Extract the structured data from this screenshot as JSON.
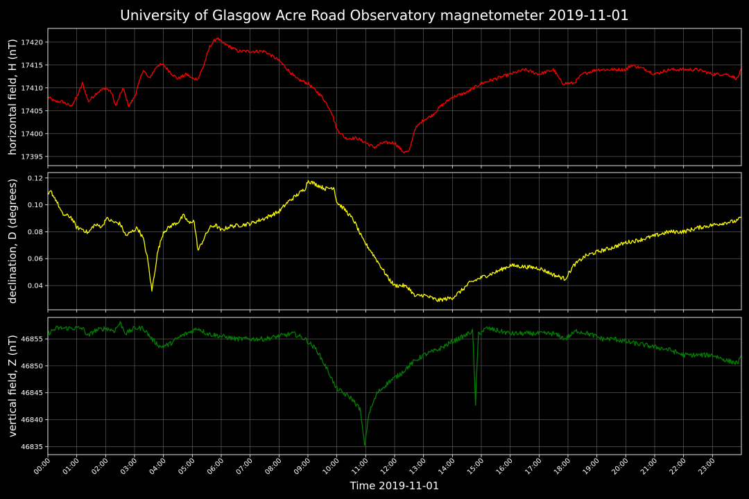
{
  "chart_data": {
    "type": "line",
    "title": "University of Glasgow Acre Road Observatory magnetometer 2019-11-01",
    "xlabel": "Time 2019-11-01",
    "x_ticks": [
      "00:00",
      "01:00",
      "02:00",
      "03:00",
      "04:00",
      "05:00",
      "06:00",
      "07:00",
      "08:00",
      "09:00",
      "10:00",
      "11:00",
      "12:00",
      "13:00",
      "14:00",
      "15:00",
      "16:00",
      "17:00",
      "18:00",
      "19:00",
      "20:00",
      "21:00",
      "22:00",
      "23:00"
    ],
    "xlim_hours": [
      0,
      24
    ],
    "grid": true,
    "background": "#000000",
    "panels": [
      {
        "ylabel": "horizontal field, H (nT)",
        "color": "#ff0000",
        "ylim": [
          17393,
          17423
        ],
        "yticks": [
          17395,
          17400,
          17405,
          17410,
          17415,
          17420
        ],
        "ytick_labels": [
          "17395",
          "17400",
          "17405",
          "17410",
          "17415",
          "17420"
        ],
        "noise": 0.35,
        "points": [
          [
            0,
            17408
          ],
          [
            0.25,
            17407
          ],
          [
            0.5,
            17407
          ],
          [
            0.8,
            17406
          ],
          [
            1.0,
            17408
          ],
          [
            1.2,
            17411
          ],
          [
            1.4,
            17407
          ],
          [
            1.7,
            17409
          ],
          [
            2.0,
            17410
          ],
          [
            2.2,
            17409
          ],
          [
            2.35,
            17406
          ],
          [
            2.6,
            17410
          ],
          [
            2.8,
            17406
          ],
          [
            3.0,
            17408
          ],
          [
            3.3,
            17414
          ],
          [
            3.5,
            17412
          ],
          [
            3.8,
            17415
          ],
          [
            4.0,
            17415
          ],
          [
            4.3,
            17413
          ],
          [
            4.5,
            17412
          ],
          [
            4.8,
            17413
          ],
          [
            5.0,
            17412
          ],
          [
            5.2,
            17412
          ],
          [
            5.4,
            17415
          ],
          [
            5.6,
            17419
          ],
          [
            5.85,
            17421
          ],
          [
            6.0,
            17420
          ],
          [
            6.3,
            17419
          ],
          [
            6.6,
            17418
          ],
          [
            7.0,
            17418
          ],
          [
            7.5,
            17418
          ],
          [
            8.0,
            17416
          ],
          [
            8.3,
            17414
          ],
          [
            8.6,
            17412
          ],
          [
            9.0,
            17411
          ],
          [
            9.5,
            17408
          ],
          [
            9.8,
            17405
          ],
          [
            10.0,
            17401
          ],
          [
            10.3,
            17399
          ],
          [
            10.7,
            17399
          ],
          [
            11.0,
            17398
          ],
          [
            11.3,
            17397
          ],
          [
            11.6,
            17398
          ],
          [
            12.0,
            17398
          ],
          [
            12.3,
            17396
          ],
          [
            12.5,
            17396
          ],
          [
            12.7,
            17401
          ],
          [
            13.0,
            17403
          ],
          [
            13.3,
            17404
          ],
          [
            13.6,
            17406
          ],
          [
            14.0,
            17408
          ],
          [
            14.5,
            17409
          ],
          [
            15.0,
            17411
          ],
          [
            15.5,
            17412
          ],
          [
            16.0,
            17413
          ],
          [
            16.5,
            17414
          ],
          [
            17.0,
            17413
          ],
          [
            17.5,
            17414
          ],
          [
            17.8,
            17411
          ],
          [
            18.2,
            17411
          ],
          [
            18.5,
            17413
          ],
          [
            19.0,
            17414
          ],
          [
            19.5,
            17414
          ],
          [
            20.0,
            17414
          ],
          [
            20.2,
            17415
          ],
          [
            20.7,
            17414
          ],
          [
            21.0,
            17413
          ],
          [
            21.5,
            17414
          ],
          [
            22.0,
            17414
          ],
          [
            22.5,
            17414
          ],
          [
            23.0,
            17413
          ],
          [
            23.5,
            17413
          ],
          [
            23.85,
            17412
          ],
          [
            24.0,
            17414
          ]
        ]
      },
      {
        "ylabel": "declination, D (degrees)",
        "color": "#ffff00",
        "ylim": [
          0.022,
          0.124
        ],
        "yticks": [
          0.04,
          0.06,
          0.08,
          0.1,
          0.12
        ],
        "ytick_labels": [
          "0.04",
          "0.06",
          "0.08",
          "0.10",
          "0.12"
        ],
        "noise": 0.0015,
        "points": [
          [
            0,
            0.107
          ],
          [
            0.1,
            0.11
          ],
          [
            0.3,
            0.103
          ],
          [
            0.5,
            0.093
          ],
          [
            0.8,
            0.091
          ],
          [
            1.0,
            0.083
          ],
          [
            1.2,
            0.082
          ],
          [
            1.4,
            0.079
          ],
          [
            1.6,
            0.085
          ],
          [
            1.9,
            0.084
          ],
          [
            2.0,
            0.09
          ],
          [
            2.3,
            0.087
          ],
          [
            2.5,
            0.086
          ],
          [
            2.7,
            0.077
          ],
          [
            2.9,
            0.08
          ],
          [
            3.1,
            0.083
          ],
          [
            3.3,
            0.075
          ],
          [
            3.45,
            0.06
          ],
          [
            3.6,
            0.036
          ],
          [
            3.8,
            0.065
          ],
          [
            4.0,
            0.08
          ],
          [
            4.3,
            0.085
          ],
          [
            4.5,
            0.087
          ],
          [
            4.7,
            0.092
          ],
          [
            4.9,
            0.086
          ],
          [
            5.05,
            0.089
          ],
          [
            5.2,
            0.066
          ],
          [
            5.4,
            0.075
          ],
          [
            5.6,
            0.083
          ],
          [
            5.8,
            0.085
          ],
          [
            6.0,
            0.081
          ],
          [
            6.3,
            0.084
          ],
          [
            6.7,
            0.085
          ],
          [
            7.0,
            0.086
          ],
          [
            7.5,
            0.09
          ],
          [
            7.8,
            0.093
          ],
          [
            8.0,
            0.095
          ],
          [
            8.3,
            0.102
          ],
          [
            8.6,
            0.107
          ],
          [
            8.9,
            0.112
          ],
          [
            9.0,
            0.118
          ],
          [
            9.3,
            0.115
          ],
          [
            9.6,
            0.112
          ],
          [
            9.9,
            0.113
          ],
          [
            10.0,
            0.102
          ],
          [
            10.3,
            0.096
          ],
          [
            10.6,
            0.088
          ],
          [
            10.9,
            0.074
          ],
          [
            11.2,
            0.065
          ],
          [
            11.5,
            0.055
          ],
          [
            11.8,
            0.045
          ],
          [
            12.0,
            0.04
          ],
          [
            12.3,
            0.04
          ],
          [
            12.5,
            0.038
          ],
          [
            12.7,
            0.032
          ],
          [
            13.0,
            0.033
          ],
          [
            13.5,
            0.029
          ],
          [
            14.0,
            0.031
          ],
          [
            14.3,
            0.036
          ],
          [
            14.6,
            0.042
          ],
          [
            15.0,
            0.046
          ],
          [
            15.5,
            0.05
          ],
          [
            16.0,
            0.055
          ],
          [
            16.5,
            0.054
          ],
          [
            17.0,
            0.053
          ],
          [
            17.5,
            0.048
          ],
          [
            17.9,
            0.045
          ],
          [
            18.2,
            0.055
          ],
          [
            18.6,
            0.062
          ],
          [
            19.0,
            0.065
          ],
          [
            19.5,
            0.068
          ],
          [
            20.0,
            0.072
          ],
          [
            20.5,
            0.074
          ],
          [
            21.0,
            0.077
          ],
          [
            21.5,
            0.08
          ],
          [
            22.0,
            0.08
          ],
          [
            22.5,
            0.083
          ],
          [
            23.0,
            0.085
          ],
          [
            23.5,
            0.087
          ],
          [
            23.85,
            0.088
          ],
          [
            24.0,
            0.091
          ]
        ]
      },
      {
        "ylabel": "vertical field, Z (nT)",
        "color": "#008000",
        "ylim": [
          46833.5,
          46859
        ],
        "yticks": [
          46835,
          46840,
          46845,
          46850,
          46855
        ],
        "ytick_labels": [
          "46835",
          "46840",
          "46845",
          "46850",
          "46855"
        ],
        "noise": 0.45,
        "points": [
          [
            0,
            46856
          ],
          [
            0.3,
            46857
          ],
          [
            0.6,
            46857
          ],
          [
            0.9,
            46857
          ],
          [
            1.2,
            46857
          ],
          [
            1.4,
            46855.5
          ],
          [
            1.6,
            46856.5
          ],
          [
            2.0,
            46857
          ],
          [
            2.3,
            46856.5
          ],
          [
            2.5,
            46858
          ],
          [
            2.7,
            46856
          ],
          [
            3.0,
            46857
          ],
          [
            3.3,
            46857
          ],
          [
            3.6,
            46855
          ],
          [
            3.9,
            46853.5
          ],
          [
            4.2,
            46854
          ],
          [
            4.6,
            46855.5
          ],
          [
            5.0,
            46856.5
          ],
          [
            5.2,
            46857
          ],
          [
            5.5,
            46856
          ],
          [
            6.0,
            46855.5
          ],
          [
            6.5,
            46855
          ],
          [
            7.0,
            46855
          ],
          [
            7.5,
            46855
          ],
          [
            8.0,
            46855.5
          ],
          [
            8.5,
            46856
          ],
          [
            8.9,
            46855
          ],
          [
            9.3,
            46853
          ],
          [
            9.6,
            46850
          ],
          [
            9.8,
            46848
          ],
          [
            9.95,
            46846
          ],
          [
            10.2,
            46845
          ],
          [
            10.5,
            46844
          ],
          [
            10.8,
            46842
          ],
          [
            10.97,
            46835
          ],
          [
            11.1,
            46841
          ],
          [
            11.4,
            46845
          ],
          [
            11.8,
            46847
          ],
          [
            12.2,
            46848.5
          ],
          [
            12.6,
            46850.5
          ],
          [
            13.0,
            46852
          ],
          [
            13.5,
            46853
          ],
          [
            14.0,
            46854.5
          ],
          [
            14.4,
            46855.5
          ],
          [
            14.7,
            46856.5
          ],
          [
            14.8,
            46843
          ],
          [
            14.9,
            46856
          ],
          [
            15.2,
            46857
          ],
          [
            15.6,
            46856.5
          ],
          [
            16.0,
            46856
          ],
          [
            16.5,
            46856
          ],
          [
            17.0,
            46856
          ],
          [
            17.5,
            46856
          ],
          [
            17.9,
            46855
          ],
          [
            18.3,
            46856.5
          ],
          [
            18.7,
            46856
          ],
          [
            19.2,
            46855
          ],
          [
            19.6,
            46855
          ],
          [
            20.0,
            46854.5
          ],
          [
            20.5,
            46854
          ],
          [
            21.0,
            46853.5
          ],
          [
            21.5,
            46853
          ],
          [
            22.0,
            46852
          ],
          [
            22.5,
            46852
          ],
          [
            23.0,
            46852
          ],
          [
            23.5,
            46851
          ],
          [
            23.85,
            46850.5
          ],
          [
            24.0,
            46851.5
          ]
        ]
      }
    ]
  }
}
